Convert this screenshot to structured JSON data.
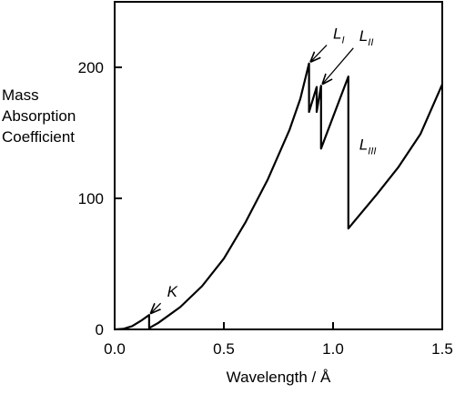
{
  "chart_data": {
    "type": "line",
    "title": "",
    "xlabel": "Wavelength / Å",
    "ylabel_lines": [
      "Mass",
      "Absorption",
      "Coefficient"
    ],
    "xlim": [
      0.0,
      1.5
    ],
    "ylim": [
      0,
      250
    ],
    "xticks": [
      0.0,
      0.5,
      1.0,
      1.5
    ],
    "xtick_labels": [
      "0.0",
      "0.5",
      "1.0",
      "1.5"
    ],
    "yticks": [
      0,
      100,
      200
    ],
    "ytick_labels": [
      "0",
      "100",
      "200"
    ],
    "grid": false,
    "series": [
      {
        "color": "#000000",
        "x": [
          0.0,
          0.04,
          0.08,
          0.12,
          0.158,
          0.158,
          0.2,
          0.3,
          0.4,
          0.5,
          0.6,
          0.7,
          0.8,
          0.85,
          0.89,
          0.89,
          0.925,
          0.925,
          0.945,
          0.945,
          1.07,
          1.07,
          1.2,
          1.3,
          1.4,
          1.5
        ],
        "y": [
          0,
          0.4,
          2.5,
          6.5,
          11,
          1,
          5,
          17,
          33,
          54,
          82,
          114,
          152,
          176,
          203,
          166,
          185,
          166,
          186,
          138,
          193,
          77,
          103,
          124,
          149,
          187
        ]
      }
    ],
    "annotations": [
      {
        "label": "K",
        "sub": "",
        "x": 0.158,
        "y": 11,
        "text_x": 0.24,
        "text_y": 25
      },
      {
        "label": "L",
        "sub": "I",
        "x": 0.89,
        "y": 203,
        "text_x": 1.0,
        "text_y": 222
      },
      {
        "label": "L",
        "sub": "II",
        "x": 0.945,
        "y": 186,
        "text_x": 1.12,
        "text_y": 220
      },
      {
        "label": "L",
        "sub": "III",
        "x": 1.07,
        "y": 138,
        "text_x": 1.12,
        "text_y": 137
      }
    ]
  }
}
